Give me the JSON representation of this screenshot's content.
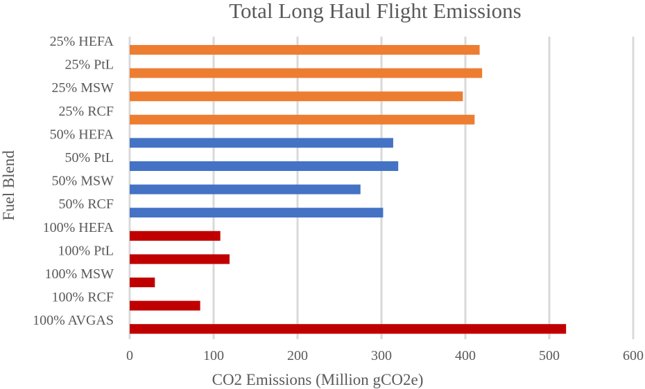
{
  "chart_data": {
    "type": "bar",
    "orientation": "horizontal",
    "title": "Total Long Haul Flight Emissions",
    "xlabel": "CO2 Emissions (Million gCO2e)",
    "ylabel": "Fuel Blend",
    "xlim": [
      0,
      600
    ],
    "xticks": [
      "0",
      "100",
      "200",
      "300",
      "400",
      "500",
      "600"
    ],
    "grid": true,
    "legend": "none",
    "categories": [
      "25% HEFA",
      "25% PtL",
      "25% MSW",
      "25% RCF",
      "50% HEFA",
      "50% PtL",
      "50% MSW",
      "50% RCF",
      "100% HEFA",
      "100% PtL",
      "100% MSW",
      "100% RCF",
      "100% AVGAS"
    ],
    "values": [
      417,
      420,
      397,
      411,
      314,
      320,
      275,
      302,
      108,
      119,
      30,
      84,
      520
    ],
    "colors": [
      "#ed7d31",
      "#ed7d31",
      "#ed7d31",
      "#ed7d31",
      "#4472c4",
      "#4472c4",
      "#4472c4",
      "#4472c4",
      "#c00000",
      "#c00000",
      "#c00000",
      "#c00000",
      "#c00000"
    ]
  }
}
